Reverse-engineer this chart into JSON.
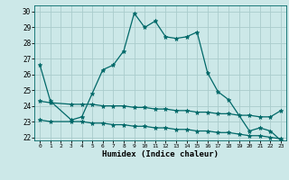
{
  "xlabel": "Humidex (Indice chaleur)",
  "background_color": "#cce8e8",
  "grid_color": "#aacccc",
  "line_color": "#006868",
  "xlim": [
    -0.5,
    23.5
  ],
  "ylim": [
    21.8,
    30.4
  ],
  "yticks": [
    22,
    23,
    24,
    25,
    26,
    27,
    28,
    29,
    30
  ],
  "xticks": [
    0,
    1,
    2,
    3,
    4,
    5,
    6,
    7,
    8,
    9,
    10,
    11,
    12,
    13,
    14,
    15,
    16,
    17,
    18,
    19,
    20,
    21,
    22,
    23
  ],
  "series": [
    {
      "x": [
        0,
        1,
        3,
        4,
        5,
        6,
        7,
        8,
        9,
        10,
        11,
        12,
        13,
        14,
        15,
        16,
        17,
        18,
        20,
        21,
        22,
        23
      ],
      "y": [
        26.6,
        24.3,
        23.1,
        23.3,
        24.8,
        26.3,
        26.6,
        27.5,
        29.9,
        29.0,
        29.4,
        28.4,
        28.3,
        28.4,
        28.7,
        26.1,
        24.9,
        24.4,
        22.4,
        22.6,
        22.4,
        21.8
      ]
    },
    {
      "x": [
        0,
        1,
        3,
        4,
        5,
        6,
        7,
        8,
        9,
        10,
        11,
        12,
        13,
        14,
        15,
        16,
        17,
        18,
        19,
        20,
        21,
        22,
        23
      ],
      "y": [
        24.3,
        24.2,
        24.1,
        24.1,
        24.1,
        24.0,
        24.0,
        24.0,
        23.9,
        23.9,
        23.8,
        23.8,
        23.7,
        23.7,
        23.6,
        23.6,
        23.5,
        23.5,
        23.4,
        23.4,
        23.3,
        23.3,
        23.7
      ]
    },
    {
      "x": [
        0,
        1,
        3,
        4,
        5,
        6,
        7,
        8,
        9,
        10,
        11,
        12,
        13,
        14,
        15,
        16,
        17,
        18,
        19,
        20,
        21,
        22,
        23
      ],
      "y": [
        23.1,
        23.0,
        23.0,
        23.0,
        22.9,
        22.9,
        22.8,
        22.8,
        22.7,
        22.7,
        22.6,
        22.6,
        22.5,
        22.5,
        22.4,
        22.4,
        22.3,
        22.3,
        22.2,
        22.1,
        22.1,
        22.0,
        21.9
      ]
    }
  ]
}
